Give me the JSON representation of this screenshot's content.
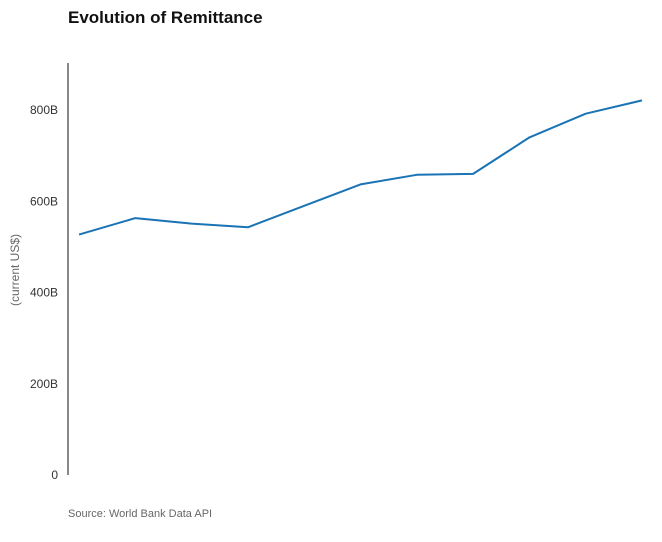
{
  "chart_data": {
    "type": "line",
    "title": "Evolution of Remittance",
    "ylabel": "(current US$)",
    "xlabel": "",
    "source": "Source: World Bank Data API",
    "ylim": [
      0,
      900
    ],
    "yticks": [
      {
        "value": 0,
        "label": "0"
      },
      {
        "value": 200,
        "label": "200B"
      },
      {
        "value": 400,
        "label": "400B"
      },
      {
        "value": 600,
        "label": "600B"
      },
      {
        "value": 800,
        "label": "800B"
      }
    ],
    "grid": false,
    "series": [
      {
        "color": "#1a73b5",
        "values": [
          527,
          563,
          551,
          543,
          590,
          637,
          658,
          660,
          740,
          792,
          821
        ]
      }
    ]
  }
}
